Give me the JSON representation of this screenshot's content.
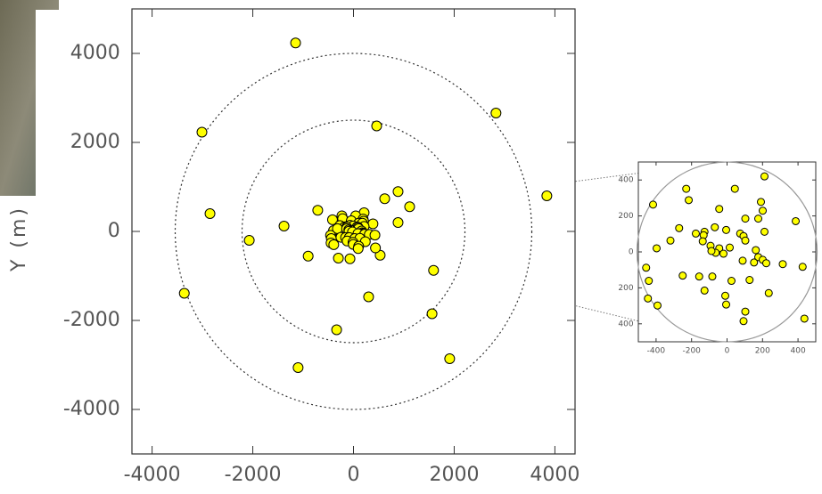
{
  "chart_data": [
    {
      "type": "scatter",
      "ylabel": "Y (m)",
      "xlim": [
        -4400,
        4400
      ],
      "ylim": [
        -5000,
        5000
      ],
      "xticks": [
        -4000,
        -2000,
        0,
        2000,
        4000
      ],
      "yticks": [
        -4000,
        -2000,
        0,
        2000,
        4000
      ],
      "rings": [
        4000,
        2500
      ],
      "color": "#ffff00",
      "x": [
        -1150,
        2830,
        -3010,
        460,
        -2850,
        3840,
        885,
        620,
        1115,
        -710,
        -1380,
        -2070,
        -900,
        -300,
        -70,
        530,
        885,
        1590,
        -3360,
        300,
        1560,
        -335,
        -1100,
        1910
      ],
      "values": [
        4235,
        2660,
        2230,
        2370,
        400,
        800,
        895,
        735,
        555,
        475,
        120,
        -200,
        -555,
        -600,
        -615,
        -535,
        200,
        -875,
        -1390,
        -1470,
        -1850,
        -2210,
        -3060,
        -2860
      ]
    },
    {
      "type": "scatter",
      "xlim": [
        -500,
        500
      ],
      "ylim": [
        -500,
        500
      ],
      "xticks": [
        -400,
        -200,
        0,
        200,
        400
      ],
      "yticks": [
        400,
        200,
        0,
        {
          "value": -200,
          "label": "200"
        },
        {
          "value": -400,
          "label": "400"
        }
      ],
      "rings": [
        500
      ],
      "color": "#ffff00",
      "x": [
        211,
        -417,
        -230,
        -216,
        44,
        191,
        201,
        -44,
        103,
        176,
        387,
        -270,
        -176,
        -127,
        -69,
        -5,
        74,
        211,
        -397,
        -319,
        -132,
        -137,
        -93,
        -44,
        15,
        93,
        103,
        162,
        176,
        201,
        152,
        -64,
        -88,
        -20,
        88,
        221,
        314,
        426,
        -456,
        -441,
        -250,
        -157,
        -83,
        25,
        127,
        235,
        -127,
        -10,
        -5,
        103,
        93,
        -446,
        -392,
        436
      ],
      "values": [
        420,
        263,
        351,
        288,
        351,
        278,
        229,
        239,
        185,
        185,
        171,
        132,
        102,
        112,
        137,
        122,
        102,
        112,
        20,
        63,
        93,
        59,
        34,
        20,
        24,
        88,
        63,
        10,
        -29,
        -44,
        -59,
        -5,
        5,
        -10,
        -49,
        -63,
        -68,
        -83,
        -88,
        -161,
        -132,
        -137,
        -137,
        -161,
        -156,
        -229,
        -215,
        -244,
        -293,
        -332,
        -385,
        -259,
        -298,
        -371
      ]
    }
  ]
}
